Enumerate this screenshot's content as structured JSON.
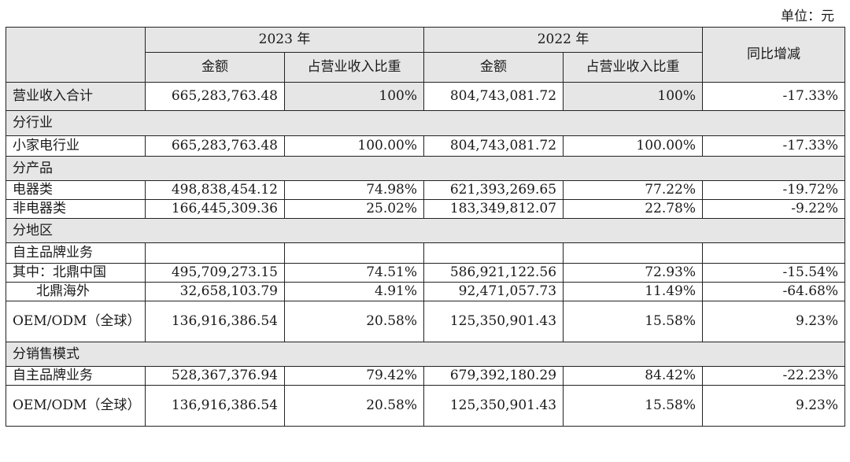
{
  "unit_label": "单位：元",
  "header": {
    "year_2023": "2023 年",
    "year_2022": "2022 年",
    "amount": "金额",
    "share": "占营业收入比重",
    "yoy": "同比增减"
  },
  "rows": [
    {
      "label": "营业收入合计",
      "a23": "665,283,763.48",
      "s23": "100%",
      "a22": "804,743,081.72",
      "s22": "100%",
      "yoy": "-17.33%"
    },
    {
      "label": "分行业"
    },
    {
      "label": "小家电行业",
      "a23": "665,283,763.48",
      "s23": "100.00%",
      "a22": "804,743,081.72",
      "s22": "100.00%",
      "yoy": "-17.33%"
    },
    {
      "label": "分产品"
    },
    {
      "label": "电器类",
      "a23": "498,838,454.12",
      "s23": "74.98%",
      "a22": "621,393,269.65",
      "s22": "77.22%",
      "yoy": "-19.72%"
    },
    {
      "label": "非电器类",
      "a23": "166,445,309.36",
      "s23": "25.02%",
      "a22": "183,349,812.07",
      "s22": "22.78%",
      "yoy": "-9.22%"
    },
    {
      "label": "分地区"
    },
    {
      "label": "自主品牌业务",
      "a23": "",
      "s23": "",
      "a22": "",
      "s22": "",
      "yoy": ""
    },
    {
      "label": "其中：北鼎中国",
      "a23": "495,709,273.15",
      "s23": "74.51%",
      "a22": "586,921,122.56",
      "s22": "72.93%",
      "yoy": "-15.54%"
    },
    {
      "label": "北鼎海外",
      "a23": "32,658,103.79",
      "s23": "4.91%",
      "a22": "92,471,057.73",
      "s22": "11.49%",
      "yoy": "-64.68%"
    },
    {
      "label": "OEM/ODM（全球）",
      "a23": "136,916,386.54",
      "s23": "20.58%",
      "a22": "125,350,901.43",
      "s22": "15.58%",
      "yoy": "9.23%"
    },
    {
      "label": "分销售模式"
    },
    {
      "label": "自主品牌业务",
      "a23": "528,367,376.94",
      "s23": "79.42%",
      "a22": "679,392,180.29",
      "s22": "84.42%",
      "yoy": "-22.23%"
    },
    {
      "label": "OEM/ODM（全球）",
      "a23": "136,916,386.54",
      "s23": "20.58%",
      "a22": "125,350,901.43",
      "s22": "15.58%",
      "yoy": "9.23%"
    }
  ]
}
